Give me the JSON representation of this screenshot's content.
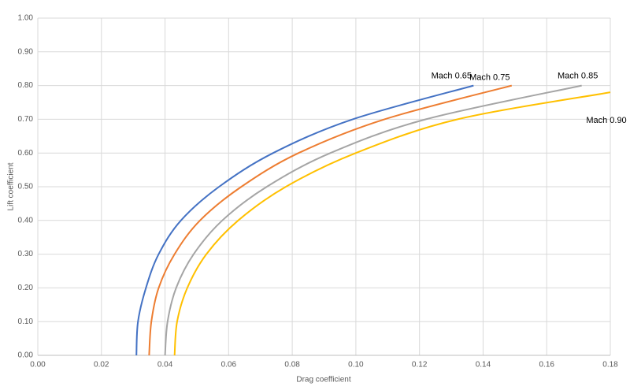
{
  "chart_data": {
    "type": "line",
    "x_label": "Drag coefficient",
    "y_label": "Lift coefficient",
    "xlim": [
      0,
      0.18
    ],
    "ylim": [
      0,
      1
    ],
    "xticks": [
      {
        "value": 0,
        "label": "0.00"
      },
      {
        "value": 0.02,
        "label": "0.02"
      },
      {
        "value": 0.04,
        "label": "0.04"
      },
      {
        "value": 0.06,
        "label": "0.06"
      },
      {
        "value": 0.08,
        "label": "0.08"
      },
      {
        "value": 0.1,
        "label": "0.10"
      },
      {
        "value": 0.12,
        "label": "0.12"
      },
      {
        "value": 0.14,
        "label": "0.14"
      },
      {
        "value": 0.16,
        "label": "0.16"
      },
      {
        "value": 0.18,
        "label": "0.18"
      }
    ],
    "yticks": [
      {
        "value": 0,
        "label": "0.00"
      },
      {
        "value": 0.1,
        "label": "0.10"
      },
      {
        "value": 0.2,
        "label": "0.20"
      },
      {
        "value": 0.3,
        "label": "0.30"
      },
      {
        "value": 0.4,
        "label": "0.40"
      },
      {
        "value": 0.5,
        "label": "0.50"
      },
      {
        "value": 0.6,
        "label": "0.60"
      },
      {
        "value": 0.7,
        "label": "0.70"
      },
      {
        "value": 0.8,
        "label": "0.80"
      },
      {
        "value": 0.9,
        "label": "0.90"
      },
      {
        "value": 1,
        "label": "1.00"
      }
    ],
    "grid": true,
    "series": [
      {
        "name": "Mach 0.65",
        "color": "#4472c4",
        "x": [
          0.031,
          0.0315,
          0.034,
          0.038,
          0.045,
          0.057,
          0.074,
          0.099,
          0.137
        ],
        "values": [
          0,
          0.1,
          0.2,
          0.3,
          0.4,
          0.5,
          0.6,
          0.7,
          0.8
        ]
      },
      {
        "name": "Mach 0.75",
        "color": "#ed7d31",
        "x": [
          0.035,
          0.0357,
          0.038,
          0.043,
          0.051,
          0.064,
          0.082,
          0.109,
          0.149
        ],
        "values": [
          0,
          0.1,
          0.2,
          0.3,
          0.4,
          0.5,
          0.6,
          0.7,
          0.8
        ]
      },
      {
        "name": "Mach 0.85",
        "color": "#a5a5a5",
        "x": [
          0.04,
          0.0408,
          0.0435,
          0.049,
          0.058,
          0.072,
          0.092,
          0.122,
          0.171
        ],
        "values": [
          0,
          0.1,
          0.2,
          0.3,
          0.4,
          0.5,
          0.6,
          0.7,
          0.8
        ]
      },
      {
        "name": "Mach 0.90",
        "color": "#ffc000",
        "x": [
          0.043,
          0.0438,
          0.047,
          0.053,
          0.063,
          0.078,
          0.1,
          0.132,
          0.18
        ],
        "values": [
          0,
          0.1,
          0.2,
          0.3,
          0.4,
          0.5,
          0.6,
          0.7,
          0.78
        ]
      }
    ]
  }
}
